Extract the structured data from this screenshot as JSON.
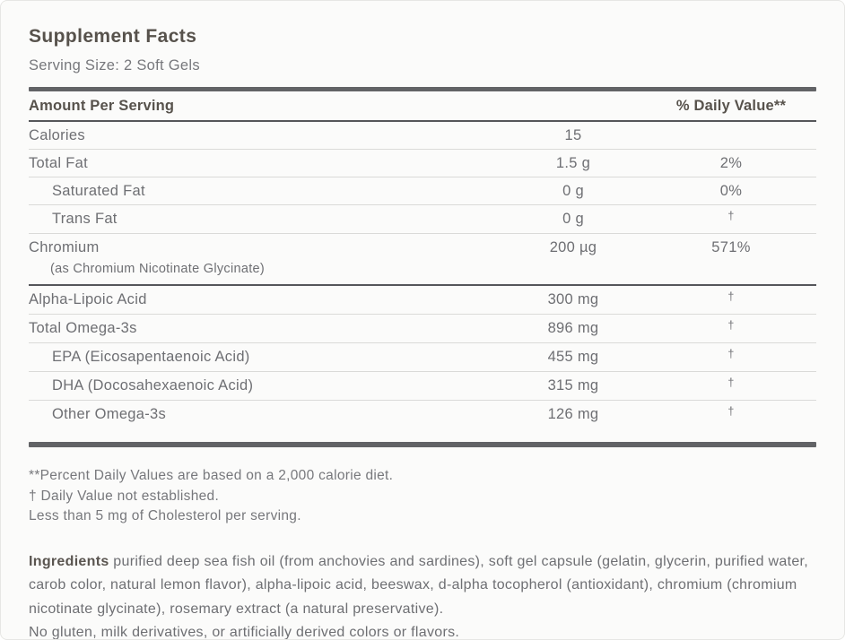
{
  "panel": {
    "title": "Supplement Facts",
    "serving_size": "Serving Size: 2 Soft Gels"
  },
  "table": {
    "header": {
      "amount_label": "Amount Per Serving",
      "dv_label": "% Daily Value**"
    },
    "rows": [
      {
        "label": "Calories",
        "indent": false,
        "amount": "15",
        "dv": "",
        "divider": "light"
      },
      {
        "label": "Total Fat",
        "indent": false,
        "amount": "1.5 g",
        "dv": "2%",
        "divider": "light"
      },
      {
        "label": "Saturated Fat",
        "indent": true,
        "amount": "0 g",
        "dv": "0%",
        "divider": "light"
      },
      {
        "label": "Trans Fat",
        "indent": true,
        "amount": "0 g",
        "dv": "†",
        "divider": "light"
      },
      {
        "label": "Chromium",
        "sub_label": "(as Chromium Nicotinate Glycinate)",
        "indent": false,
        "amount": "200 µg",
        "dv": "571%",
        "divider": "dark"
      },
      {
        "label": "Alpha-Lipoic Acid",
        "indent": false,
        "amount": "300 mg",
        "dv": "†",
        "divider": "light"
      },
      {
        "label": "Total Omega-3s",
        "indent": false,
        "amount": "896 mg",
        "dv": "†",
        "divider": "light"
      },
      {
        "label": "EPA (Eicosapentaenoic Acid)",
        "indent": true,
        "amount": "455 mg",
        "dv": "†",
        "divider": "light"
      },
      {
        "label": "DHA (Docosahexaenoic Acid)",
        "indent": true,
        "amount": "315 mg",
        "dv": "†",
        "divider": "light"
      },
      {
        "label": "Other Omega-3s",
        "indent": true,
        "amount": "126 mg",
        "dv": "†",
        "divider": "none"
      }
    ]
  },
  "footnotes": [
    "**Percent Daily Values are based on a 2,000 calorie diet.",
    "† Daily Value not established.",
    "Less than 5 mg of Cholesterol per serving."
  ],
  "ingredients": {
    "label": "Ingredients",
    "text": " purified deep sea fish oil (from anchovies and sardines), soft gel capsule (gelatin, glycerin, purified water, carob color, natural lemon flavor), alpha-lipoic acid, beeswax, d-alpha tocopherol (antioxidant), chromium (chromium nicotinate glycinate), rosemary extract (a natural preservative).",
    "allergen_note": "No gluten, milk derivatives, or artificially derived colors or flavors."
  },
  "colors": {
    "background": "#fbfbfa",
    "panel_border": "#e6e6e4",
    "title_text": "#57524c",
    "body_text": "#6e6f73",
    "muted_text": "#77787c",
    "thick_rule": "#626366",
    "dark_rule": "#55565a",
    "light_rule": "#dadad8"
  }
}
